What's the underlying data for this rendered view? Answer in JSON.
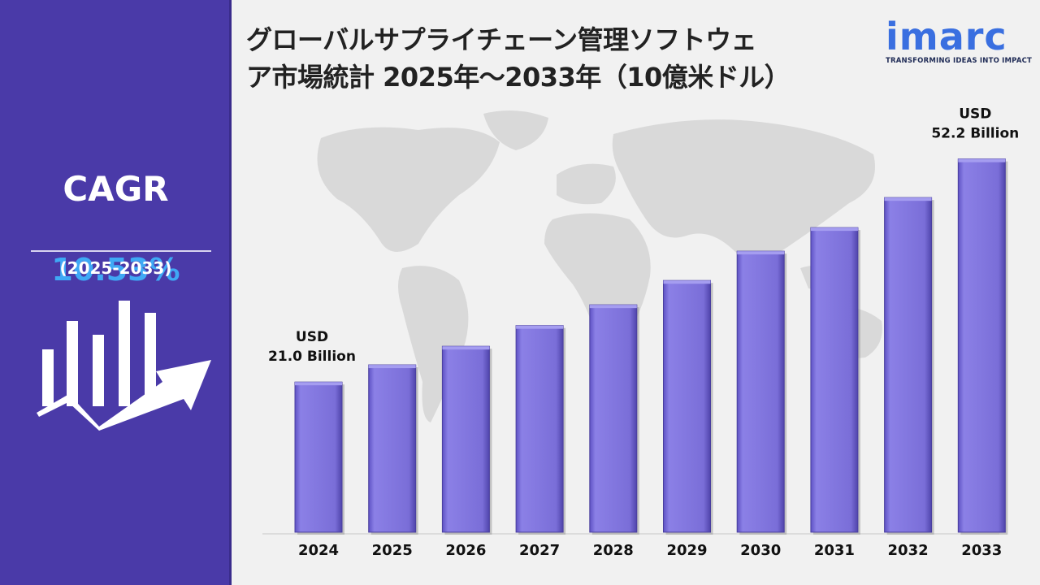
{
  "title_line1": "グローバルサプライチェーン管理ソフトウェ",
  "title_line2": "ア市場統計 2025年～2033年（10億米ドル）",
  "logo": {
    "word": "imarc",
    "tagline": "TRANSFORMING IDEAS INTO IMPACT"
  },
  "cagr": {
    "label": "CAGR",
    "value": "10.53%",
    "period": "(2025-2033)"
  },
  "colors": {
    "panel": "#4a3aa8",
    "bar": "#7b6fdc",
    "accent_value": "#3fa9f5",
    "logo": "#3a6fe0"
  },
  "chart_data": {
    "type": "bar",
    "categories": [
      "2024",
      "2025",
      "2026",
      "2027",
      "2028",
      "2029",
      "2030",
      "2031",
      "2032",
      "2033"
    ],
    "values": [
      21.0,
      23.4,
      26.0,
      28.9,
      31.8,
      35.2,
      39.3,
      42.6,
      46.8,
      52.2
    ],
    "unit": "USD Billion",
    "annotations": [
      {
        "category": "2024",
        "line1": "USD",
        "line2": "21.0 Billion"
      },
      {
        "category": "2033",
        "line1": "USD",
        "line2": "52.2 Billion"
      }
    ]
  }
}
